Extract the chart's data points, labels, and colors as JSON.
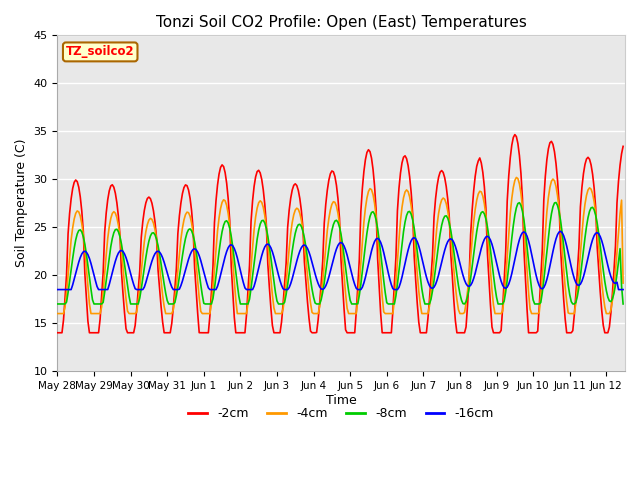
{
  "title": "Tonzi Soil CO2 Profile: Open (East) Temperatures",
  "xlabel": "Time",
  "ylabel": "Soil Temperature (C)",
  "ylim": [
    10,
    45
  ],
  "fig_bg_color": "#ffffff",
  "plot_bg_color": "#e8e8e8",
  "grid_color": "#ffffff",
  "legend_label": "TZ_soilco2",
  "legend_box_color": "#ffffcc",
  "legend_box_edge": "#aa6600",
  "series_labels": [
    "-2cm",
    "-4cm",
    "-8cm",
    "-16cm"
  ],
  "series_colors": [
    "#ff0000",
    "#ff9900",
    "#00cc00",
    "#0000ff"
  ],
  "series_linewidths": [
    1.2,
    1.2,
    1.2,
    1.2
  ],
  "tick_labels": [
    "May 28",
    "May 29",
    "May 30",
    "May 31",
    "Jun 1",
    "Jun 2",
    "Jun 3",
    "Jun 4",
    "Jun 5",
    "Jun 6",
    "Jun 7",
    "Jun 8",
    "Jun 9",
    "Jun 10",
    "Jun 11",
    "Jun 12"
  ],
  "tick_positions": [
    0,
    1,
    2,
    3,
    4,
    5,
    6,
    7,
    8,
    9,
    10,
    11,
    12,
    13,
    14,
    15
  ],
  "yticks": [
    10,
    15,
    20,
    25,
    30,
    35,
    40,
    45
  ]
}
